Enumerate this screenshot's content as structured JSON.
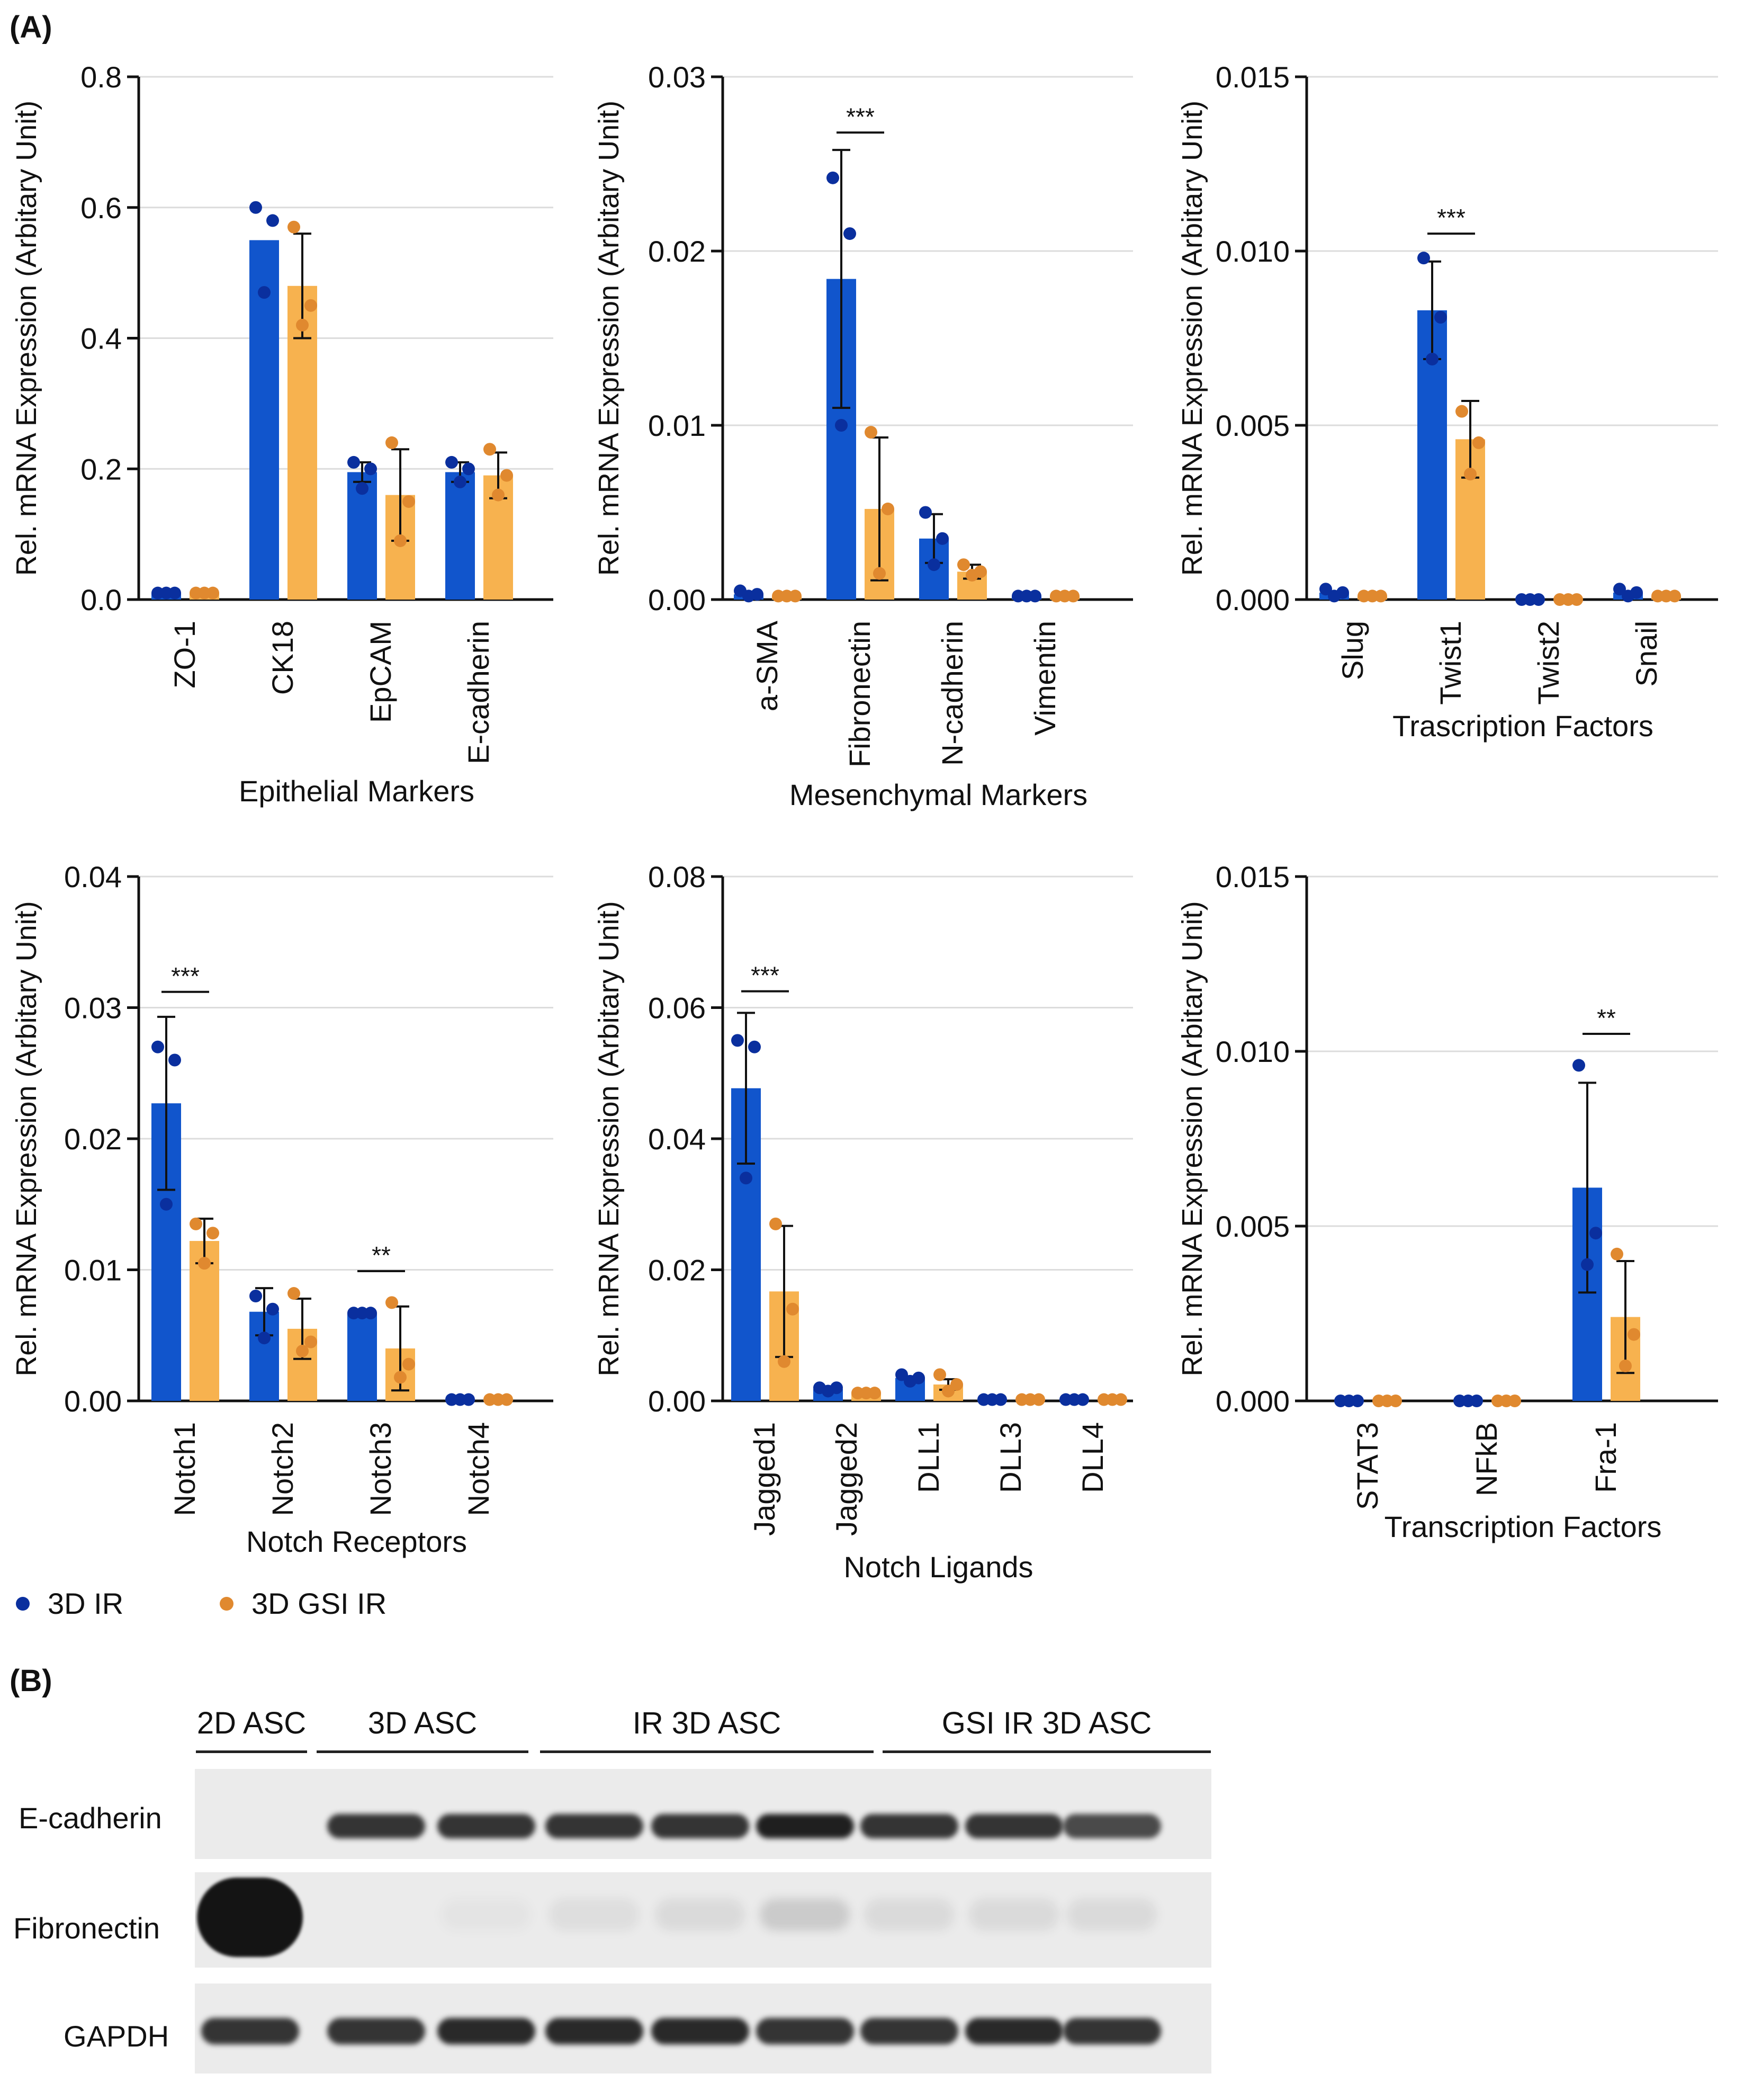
{
  "panel_a_label": "(A)",
  "panel_b_label": "(B)",
  "colors": {
    "ir": "#1155cc",
    "ir_dot": "#0a2f9e",
    "gsi": "#f7b24f",
    "gsi_dot": "#e0892f",
    "axis": "#111111",
    "grid": "#dcdcdc"
  },
  "legend": {
    "ir_label": "3D IR",
    "gsi_label": "3D GSI IR"
  },
  "chart_data": [
    {
      "type": "bar",
      "ylabel": "Rel. mRNA Expression (Arbitary Unit)",
      "xlabel": "Epithelial Markers",
      "ylim": [
        0,
        0.8
      ],
      "yticks": [
        "0.0",
        "0.2",
        "0.4",
        "0.6",
        "0.8"
      ],
      "categories": [
        "ZO-1",
        "CK18",
        "EpCAM",
        "E-cadherin"
      ],
      "series": [
        {
          "name": "3D IR",
          "values": [
            0.01,
            0.55,
            0.195,
            0.195
          ],
          "err": [
            0,
            0,
            0.015,
            0.015
          ],
          "points": [
            [
              0.01,
              0.01,
              0.01
            ],
            [
              0.6,
              0.58,
              0.47
            ],
            [
              0.21,
              0.2,
              0.17
            ],
            [
              0.21,
              0.2,
              0.18
            ]
          ]
        },
        {
          "name": "3D GSI IR",
          "values": [
            0.01,
            0.48,
            0.16,
            0.19
          ],
          "err": [
            0,
            0.08,
            0.07,
            0.035
          ],
          "points": [
            [
              0.01,
              0.01,
              0.01
            ],
            [
              0.57,
              0.45,
              0.42
            ],
            [
              0.24,
              0.15,
              0.09
            ],
            [
              0.23,
              0.19,
              0.16
            ]
          ]
        }
      ],
      "significance": []
    },
    {
      "type": "bar",
      "ylabel": "Rel. mRNA Expression (Arbitary Unit)",
      "xlabel": "Mesenchymal Markers",
      "ylim": [
        0,
        0.03
      ],
      "yticks": [
        "0.00",
        "0.01",
        "0.02",
        "0.03"
      ],
      "categories": [
        "a-SMA",
        "Fibronectin",
        "N-cadherin",
        "Vimentin"
      ],
      "series": [
        {
          "name": "3D IR",
          "values": [
            0.0003,
            0.0184,
            0.0035,
            0.0002
          ],
          "err": [
            0,
            0.0074,
            0.0014,
            0
          ],
          "points": [
            [
              0.0005,
              0.0003,
              0.0002
            ],
            [
              0.0242,
              0.021,
              0.01
            ],
            [
              0.005,
              0.0035,
              0.002
            ],
            [
              0.0002,
              0.0002,
              0.0002
            ]
          ]
        },
        {
          "name": "3D GSI IR",
          "values": [
            0.0002,
            0.0052,
            0.0016,
            0.0002
          ],
          "err": [
            0,
            0.0041,
            0.0004,
            0
          ],
          "points": [
            [
              0.0002,
              0.0002,
              0.0002
            ],
            [
              0.0096,
              0.0052,
              0.0015
            ],
            [
              0.002,
              0.0016,
              0.0014
            ],
            [
              0.0002,
              0.0002,
              0.0002
            ]
          ]
        }
      ],
      "significance": [
        {
          "category": 1,
          "label": "***",
          "value": 0.0268
        }
      ]
    },
    {
      "type": "bar",
      "ylabel": "Rel. mRNA Expression (Arbitary Unit)",
      "xlabel": "Trascription Factors",
      "ylim": [
        0,
        0.015
      ],
      "yticks": [
        "0.000",
        "0.005",
        "0.010",
        "0.015"
      ],
      "categories": [
        "Slug",
        "Twist1",
        "Twist2",
        "Snail"
      ],
      "series": [
        {
          "name": "3D IR",
          "values": [
            0.0002,
            0.0083,
            0.0,
            0.0002
          ],
          "err": [
            0,
            0.0014,
            0,
            0
          ],
          "points": [
            [
              0.0003,
              0.0002,
              0.0001
            ],
            [
              0.0098,
              0.0081,
              0.0069
            ],
            [
              0,
              0,
              0
            ],
            [
              0.0003,
              0.0002,
              0.0001
            ]
          ]
        },
        {
          "name": "3D GSI IR",
          "values": [
            0.0001,
            0.0046,
            0.0,
            0.0001
          ],
          "err": [
            0,
            0.0011,
            0,
            0
          ],
          "points": [
            [
              0.0001,
              0.0001,
              0.0001
            ],
            [
              0.0054,
              0.0045,
              0.0036
            ],
            [
              0,
              0,
              0
            ],
            [
              0.0001,
              0.0001,
              0.0001
            ]
          ]
        }
      ],
      "significance": [
        {
          "category": 1,
          "label": "***",
          "value": 0.0105
        }
      ]
    },
    {
      "type": "bar",
      "ylabel": "Rel. mRNA Expression (Arbitary Unit)",
      "xlabel": "Notch Receptors",
      "ylim": [
        0,
        0.04
      ],
      "yticks": [
        "0.00",
        "0.01",
        "0.02",
        "0.03",
        "0.04"
      ],
      "categories": [
        "Notch1",
        "Notch2",
        "Notch3",
        "Notch4"
      ],
      "series": [
        {
          "name": "3D IR",
          "values": [
            0.0227,
            0.0068,
            0.0067,
            0.0001
          ],
          "err": [
            0.0066,
            0.0018,
            0,
            0
          ],
          "points": [
            [
              0.027,
              0.026,
              0.015
            ],
            [
              0.008,
              0.007,
              0.0048
            ],
            [
              0.0067,
              0.0067,
              0.0067
            ],
            [
              0.0001,
              0.0001,
              0.0001
            ]
          ]
        },
        {
          "name": "3D GSI IR",
          "values": [
            0.0122,
            0.0055,
            0.004,
            0.0001
          ],
          "err": [
            0.0017,
            0.0023,
            0.0032,
            0
          ],
          "points": [
            [
              0.0135,
              0.0128,
              0.0105
            ],
            [
              0.0082,
              0.0045,
              0.0038
            ],
            [
              0.0075,
              0.0028,
              0.0018
            ],
            [
              0.0001,
              0.0001,
              0.0001
            ]
          ]
        }
      ],
      "significance": [
        {
          "category": 0,
          "label": "***",
          "value": 0.0312
        },
        {
          "category": 2,
          "label": "**",
          "value": 0.0099
        }
      ]
    },
    {
      "type": "bar",
      "ylabel": "Rel. mRNA Expression (Arbitary Unit)",
      "xlabel": "Notch Ligands",
      "ylim": [
        0,
        0.08
      ],
      "yticks": [
        "0.00",
        "0.02",
        "0.04",
        "0.06",
        "0.08"
      ],
      "categories": [
        "Jagged1",
        "Jagged2",
        "DLL1",
        "DLL3",
        "DLL4"
      ],
      "series": [
        {
          "name": "3D IR",
          "values": [
            0.0477,
            0.0018,
            0.0035,
            0.0002,
            0.0002
          ],
          "err": [
            0.0115,
            0,
            0,
            0,
            0
          ],
          "points": [
            [
              0.055,
              0.054,
              0.034
            ],
            [
              0.002,
              0.002,
              0.0015
            ],
            [
              0.004,
              0.0035,
              0.003
            ],
            [
              0.0002,
              0.0002,
              0.0002
            ],
            [
              0.0002,
              0.0002,
              0.0002
            ]
          ]
        },
        {
          "name": "3D GSI IR",
          "values": [
            0.0167,
            0.0012,
            0.0025,
            0.0002,
            0.0002
          ],
          "err": [
            0.01,
            0,
            0.0008,
            0,
            0
          ],
          "points": [
            [
              0.027,
              0.014,
              0.006
            ],
            [
              0.0012,
              0.0012,
              0.0012
            ],
            [
              0.004,
              0.0025,
              0.0015
            ],
            [
              0.0002,
              0.0002,
              0.0002
            ],
            [
              0.0002,
              0.0002,
              0.0002
            ]
          ]
        }
      ],
      "significance": [
        {
          "category": 0,
          "label": "***",
          "value": 0.0625
        }
      ]
    },
    {
      "type": "bar",
      "ylabel": "Rel. mRNA Expression (Arbitary Unit)",
      "xlabel": "Transcription Factors",
      "ylim": [
        0,
        0.015
      ],
      "yticks": [
        "0.000",
        "0.005",
        "0.010",
        "0.015"
      ],
      "categories": [
        "STAT3",
        "NFkB",
        "Fra-1"
      ],
      "series": [
        {
          "name": "3D IR",
          "values": [
            0.0,
            0.0,
            0.0061
          ],
          "err": [
            0,
            0,
            0.003
          ],
          "points": [
            [
              0,
              0,
              0
            ],
            [
              0,
              0,
              0
            ],
            [
              0.0096,
              0.0048,
              0.0039
            ]
          ]
        },
        {
          "name": "3D GSI IR",
          "values": [
            0.0,
            0.0,
            0.0024
          ],
          "err": [
            0,
            0,
            0.0016
          ],
          "points": [
            [
              0,
              0,
              0
            ],
            [
              0,
              0,
              0
            ],
            [
              0.0042,
              0.0019,
              0.001
            ]
          ]
        }
      ],
      "significance": [
        {
          "category": 2,
          "label": "**",
          "value": 0.0105
        }
      ]
    }
  ],
  "western_blot": {
    "groups": [
      "2D ASC",
      "3D ASC",
      "IR 3D ASC",
      "GSI IR 3D ASC"
    ],
    "rows": [
      "E-cadherin",
      "Fibronectin",
      "GAPDH"
    ],
    "lanes": 9,
    "band_intensity": {
      "E-cadherin": [
        0.0,
        0.85,
        0.85,
        0.85,
        0.85,
        0.95,
        0.85,
        0.85,
        0.75
      ],
      "Fibronectin": [
        1.0,
        0.0,
        0.03,
        0.06,
        0.08,
        0.15,
        0.08,
        0.08,
        0.08
      ],
      "GAPDH": [
        0.85,
        0.85,
        0.9,
        0.9,
        0.9,
        0.85,
        0.85,
        0.9,
        0.85
      ]
    }
  }
}
